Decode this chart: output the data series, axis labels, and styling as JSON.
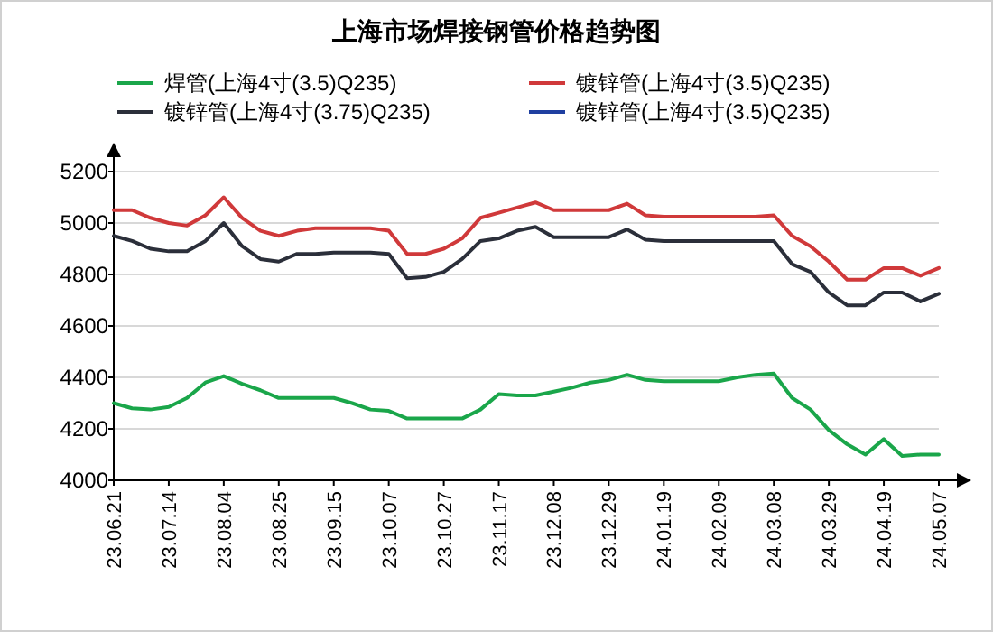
{
  "chart_data": {
    "type": "line",
    "title": "上海市场焊接钢管价格趋势图",
    "categories": [
      "23.06.21",
      null,
      null,
      "23.07.14",
      null,
      null,
      "23.08.04",
      null,
      null,
      "23.08.25",
      null,
      null,
      "23.09.15",
      null,
      null,
      "23.10.07",
      null,
      null,
      "23.10.27",
      null,
      null,
      "23.11.17",
      null,
      null,
      "23.12.08",
      null,
      null,
      "23.12.29",
      null,
      null,
      "24.01.19",
      null,
      null,
      "24.02.09",
      null,
      null,
      "24.03.08",
      null,
      null,
      "24.03.29",
      null,
      null,
      "24.04.19",
      null,
      null,
      "24.05.07"
    ],
    "series": [
      {
        "name": "焊管(上海4寸(3.5)Q235)",
        "color": "#1aa64a",
        "values": [
          4300,
          4280,
          4275,
          4285,
          4320,
          4380,
          4405,
          4375,
          4350,
          4320,
          4320,
          4320,
          4320,
          4300,
          4275,
          4270,
          4240,
          4240,
          4240,
          4240,
          4275,
          4335,
          4330,
          4330,
          4345,
          4360,
          4380,
          4390,
          4410,
          4390,
          4385,
          4385,
          4385,
          4385,
          4400,
          4410,
          4415,
          4320,
          4275,
          4195,
          4140,
          4100,
          4160,
          4095,
          4100,
          4100
        ]
      },
      {
        "name": "镀锌管(上海4寸(3.5)Q235)",
        "color": "#d0393a",
        "values": [
          5050,
          5050,
          5020,
          5000,
          4990,
          5030,
          5100,
          5020,
          4970,
          4950,
          4970,
          4980,
          4980,
          4980,
          4980,
          4970,
          4880,
          4880,
          4900,
          4940,
          5020,
          5040,
          5060,
          5080,
          5050,
          5050,
          5050,
          5050,
          5075,
          5030,
          5025,
          5025,
          5025,
          5025,
          5025,
          5025,
          5030,
          4950,
          4910,
          4850,
          4780,
          4780,
          4825,
          4825,
          4795,
          4825
        ]
      },
      {
        "name": "镀锌管(上海4寸(3.75)Q235)",
        "color": "#2b2f3a",
        "values": [
          4950,
          4930,
          4900,
          4890,
          4890,
          4930,
          5000,
          4910,
          4860,
          4850,
          4880,
          4880,
          4885,
          4885,
          4885,
          4880,
          4785,
          4790,
          4810,
          4860,
          4930,
          4940,
          4970,
          4985,
          4945,
          4945,
          4945,
          4945,
          4975,
          4935,
          4930,
          4930,
          4930,
          4930,
          4930,
          4930,
          4930,
          4840,
          4810,
          4730,
          4680,
          4680,
          4730,
          4730,
          4695,
          4725
        ]
      },
      {
        "name": "镀锌管(上海4寸(3.5)Q235)",
        "color": "#1f3fa0",
        "values": [
          null,
          null,
          null,
          null,
          null,
          null,
          null,
          null,
          null,
          null,
          null,
          null,
          null,
          null,
          null,
          null,
          null,
          null,
          null,
          null,
          null,
          null,
          null,
          null,
          null,
          null,
          null,
          null,
          null,
          null,
          null,
          null,
          null,
          null,
          null,
          null,
          null,
          null,
          null,
          null,
          null,
          null,
          null,
          null,
          null,
          null
        ]
      }
    ],
    "ylim": [
      4000,
      5200
    ],
    "yticks": [
      4000,
      4200,
      4400,
      4600,
      4800,
      5000,
      5200
    ],
    "grid": "y",
    "legend": "top",
    "line_style": "solid"
  }
}
